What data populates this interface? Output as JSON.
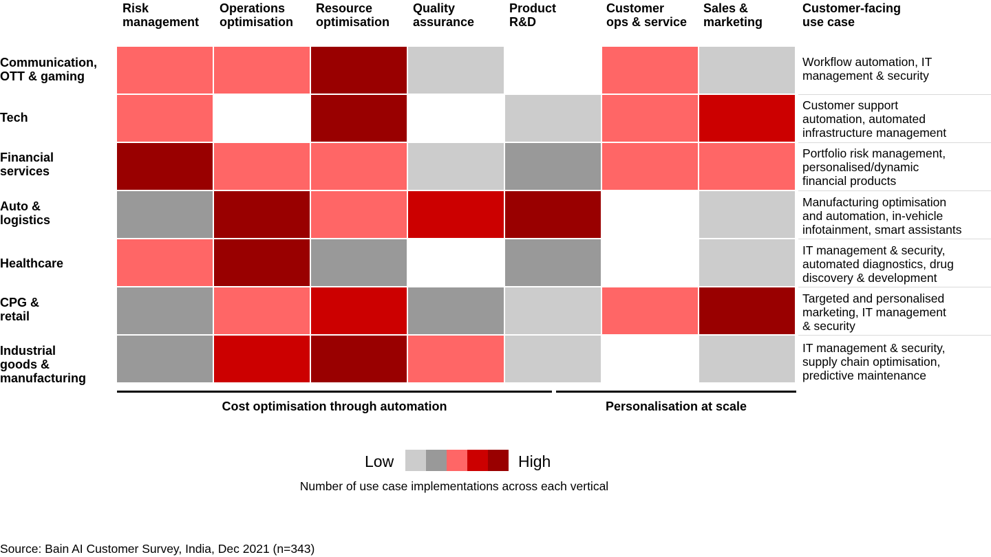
{
  "chart_data": {
    "type": "heatmap",
    "columns": [
      "Risk\nmanagement",
      "Operations\noptimisation",
      "Resource\noptimisation",
      "Quality\nassurance",
      "Product\nR&D",
      "Customer\nops & service",
      "Sales &\nmarketing"
    ],
    "use_case_header": "Customer-facing\nuse case",
    "rows": [
      {
        "label": "Communication,\nOTT & gaming",
        "levels": [
          3,
          3,
          5,
          1,
          0,
          3,
          1
        ],
        "use_case": "Workflow automation, IT\nmanagement & security"
      },
      {
        "label": "Tech",
        "levels": [
          3,
          0,
          5,
          0,
          1,
          3,
          4
        ],
        "use_case": "Customer support\nautomation, automated\ninfrastructure management"
      },
      {
        "label": "Financial\nservices",
        "levels": [
          5,
          3,
          3,
          1,
          2,
          3,
          3
        ],
        "use_case": "Portfolio risk management,\npersonalised/dynamic\nfinancial products"
      },
      {
        "label": "Auto &\nlogistics",
        "levels": [
          2,
          5,
          3,
          4,
          5,
          0,
          1
        ],
        "use_case": "Manufacturing optimisation\nand automation, in-vehicle\ninfotainment, smart assistants"
      },
      {
        "label": "Healthcare",
        "levels": [
          3,
          5,
          2,
          0,
          2,
          0,
          1
        ],
        "use_case": "IT management & security,\nautomated diagnostics, drug\ndiscovery & development"
      },
      {
        "label": "CPG &\nretail",
        "levels": [
          2,
          3,
          4,
          2,
          1,
          3,
          5
        ],
        "use_case": "Targeted and personalised\nmarketing, IT management\n& security"
      },
      {
        "label": "Industrial\ngoods &\nmanufacturing",
        "levels": [
          2,
          4,
          5,
          3,
          1,
          0,
          1
        ],
        "use_case": "IT management & security,\nsupply chain optimisation,\npredictive maintenance"
      }
    ],
    "level_colors": [
      "#ffffff",
      "#cccccc",
      "#999999",
      "#ff6666",
      "#cc0000",
      "#990000"
    ],
    "groups": [
      {
        "label": "Cost optimisation through automation"
      },
      {
        "label": "Personalisation at scale"
      }
    ],
    "legend": {
      "low": "Low",
      "high": "High",
      "note": "Number of use case implementations across each vertical"
    }
  },
  "source": "Source: Bain AI Customer Survey, India, Dec 2021 (n=343)"
}
